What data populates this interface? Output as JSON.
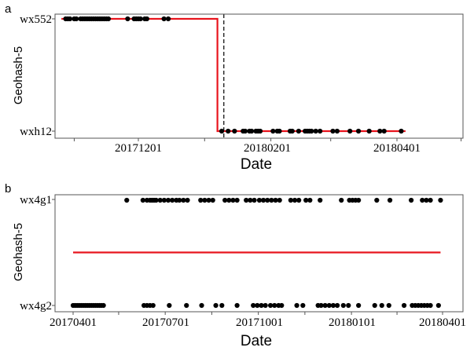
{
  "chart_data": [
    {
      "panel": "a",
      "type": "scatter",
      "xlabel": "Date",
      "ylabel": "Geohash-5",
      "y_categories": [
        "wxh12",
        "wx552"
      ],
      "x_tick_labels": [
        "20171201",
        "20180201",
        "20180401"
      ],
      "x_ticks": [
        "2017-12-01",
        "2018-02-01",
        "2018-04-01"
      ],
      "xlim": [
        "2017-10-26",
        "2018-05-01"
      ],
      "grid": false,
      "legend": "none",
      "series": [
        {
          "type": "scatter",
          "color": "#000000",
          "points": [
            {
              "x": "2017-10-28",
              "y": "wx552"
            },
            {
              "x": "2017-10-29",
              "y": "wx552"
            },
            {
              "x": "2017-10-30",
              "y": "wx552"
            },
            {
              "x": "2017-11-01",
              "y": "wx552"
            },
            {
              "x": "2017-11-02",
              "y": "wx552"
            },
            {
              "x": "2017-11-04",
              "y": "wx552"
            },
            {
              "x": "2017-11-05",
              "y": "wx552"
            },
            {
              "x": "2017-11-06",
              "y": "wx552"
            },
            {
              "x": "2017-11-07",
              "y": "wx552"
            },
            {
              "x": "2017-11-08",
              "y": "wx552"
            },
            {
              "x": "2017-11-09",
              "y": "wx552"
            },
            {
              "x": "2017-11-10",
              "y": "wx552"
            },
            {
              "x": "2017-11-11",
              "y": "wx552"
            },
            {
              "x": "2017-11-12",
              "y": "wx552"
            },
            {
              "x": "2017-11-13",
              "y": "wx552"
            },
            {
              "x": "2017-11-14",
              "y": "wx552"
            },
            {
              "x": "2017-11-15",
              "y": "wx552"
            },
            {
              "x": "2017-11-16",
              "y": "wx552"
            },
            {
              "x": "2017-11-17",
              "y": "wx552"
            },
            {
              "x": "2017-11-26",
              "y": "wx552"
            },
            {
              "x": "2017-11-29",
              "y": "wx552"
            },
            {
              "x": "2017-11-30",
              "y": "wx552"
            },
            {
              "x": "2017-12-01",
              "y": "wx552"
            },
            {
              "x": "2017-12-02",
              "y": "wx552"
            },
            {
              "x": "2017-12-04",
              "y": "wx552"
            },
            {
              "x": "2017-12-05",
              "y": "wx552"
            },
            {
              "x": "2017-12-13",
              "y": "wx552"
            },
            {
              "x": "2017-12-15",
              "y": "wx552"
            },
            {
              "x": "2018-01-09",
              "y": "wxh12"
            },
            {
              "x": "2018-01-12",
              "y": "wxh12"
            },
            {
              "x": "2018-01-15",
              "y": "wxh12"
            },
            {
              "x": "2018-01-19",
              "y": "wxh12"
            },
            {
              "x": "2018-01-20",
              "y": "wxh12"
            },
            {
              "x": "2018-01-22",
              "y": "wxh12"
            },
            {
              "x": "2018-01-23",
              "y": "wxh12"
            },
            {
              "x": "2018-01-25",
              "y": "wxh12"
            },
            {
              "x": "2018-01-26",
              "y": "wxh12"
            },
            {
              "x": "2018-01-27",
              "y": "wxh12"
            },
            {
              "x": "2018-02-02",
              "y": "wxh12"
            },
            {
              "x": "2018-02-04",
              "y": "wxh12"
            },
            {
              "x": "2018-02-05",
              "y": "wxh12"
            },
            {
              "x": "2018-02-10",
              "y": "wxh12"
            },
            {
              "x": "2018-02-11",
              "y": "wxh12"
            },
            {
              "x": "2018-02-14",
              "y": "wxh12"
            },
            {
              "x": "2018-02-17",
              "y": "wxh12"
            },
            {
              "x": "2018-02-18",
              "y": "wxh12"
            },
            {
              "x": "2018-02-19",
              "y": "wxh12"
            },
            {
              "x": "2018-02-20",
              "y": "wxh12"
            },
            {
              "x": "2018-02-22",
              "y": "wxh12"
            },
            {
              "x": "2018-02-24",
              "y": "wxh12"
            },
            {
              "x": "2018-03-02",
              "y": "wxh12"
            },
            {
              "x": "2018-03-04",
              "y": "wxh12"
            },
            {
              "x": "2018-03-10",
              "y": "wxh12"
            },
            {
              "x": "2018-03-14",
              "y": "wxh12"
            },
            {
              "x": "2018-03-19",
              "y": "wxh12"
            },
            {
              "x": "2018-03-24",
              "y": "wxh12"
            },
            {
              "x": "2018-03-26",
              "y": "wxh12"
            },
            {
              "x": "2018-04-03",
              "y": "wxh12"
            }
          ]
        },
        {
          "type": "step",
          "color": "#e8141d",
          "points": [
            {
              "x": "2017-10-26",
              "y": "wx552"
            },
            {
              "x": "2018-01-07",
              "y": "wx552"
            },
            {
              "x": "2018-01-07",
              "y": "wxh12"
            },
            {
              "x": "2018-04-05",
              "y": "wxh12"
            }
          ]
        },
        {
          "type": "vline",
          "style": "dashed",
          "color": "#000000",
          "x": "2018-01-10"
        }
      ]
    },
    {
      "panel": "b",
      "type": "scatter",
      "xlabel": "Date",
      "ylabel": "Geohash-5",
      "y_categories": [
        "wx4g2",
        "wx4g1"
      ],
      "x_tick_labels": [
        "20170401",
        "20170701",
        "20171001",
        "20180101",
        "20180401"
      ],
      "x_ticks": [
        "2017-04-01",
        "2017-07-01",
        "2017-10-01",
        "2018-01-01",
        "2018-04-01"
      ],
      "xlim": [
        "2017-03-15",
        "2018-04-20"
      ],
      "grid": false,
      "legend": "none",
      "series": [
        {
          "type": "scatter",
          "color": "#000000",
          "points": [
            {
              "x": "2017-04-01",
              "y": "wx4g2"
            },
            {
              "x": "2017-04-03",
              "y": "wx4g2"
            },
            {
              "x": "2017-04-05",
              "y": "wx4g2"
            },
            {
              "x": "2017-04-07",
              "y": "wx4g2"
            },
            {
              "x": "2017-04-09",
              "y": "wx4g2"
            },
            {
              "x": "2017-04-11",
              "y": "wx4g2"
            },
            {
              "x": "2017-04-13",
              "y": "wx4g2"
            },
            {
              "x": "2017-04-15",
              "y": "wx4g2"
            },
            {
              "x": "2017-04-17",
              "y": "wx4g2"
            },
            {
              "x": "2017-04-19",
              "y": "wx4g2"
            },
            {
              "x": "2017-04-21",
              "y": "wx4g2"
            },
            {
              "x": "2017-04-23",
              "y": "wx4g2"
            },
            {
              "x": "2017-04-25",
              "y": "wx4g2"
            },
            {
              "x": "2017-04-27",
              "y": "wx4g2"
            },
            {
              "x": "2017-04-29",
              "y": "wx4g2"
            },
            {
              "x": "2017-05-01",
              "y": "wx4g2"
            },
            {
              "x": "2017-06-10",
              "y": "wx4g2"
            },
            {
              "x": "2017-06-13",
              "y": "wx4g2"
            },
            {
              "x": "2017-06-16",
              "y": "wx4g2"
            },
            {
              "x": "2017-06-19",
              "y": "wx4g2"
            },
            {
              "x": "2017-07-05",
              "y": "wx4g2"
            },
            {
              "x": "2017-07-22",
              "y": "wx4g2"
            },
            {
              "x": "2017-08-06",
              "y": "wx4g2"
            },
            {
              "x": "2017-08-20",
              "y": "wx4g2"
            },
            {
              "x": "2017-08-26",
              "y": "wx4g2"
            },
            {
              "x": "2017-09-10",
              "y": "wx4g2"
            },
            {
              "x": "2017-09-26",
              "y": "wx4g2"
            },
            {
              "x": "2017-09-30",
              "y": "wx4g2"
            },
            {
              "x": "2017-10-04",
              "y": "wx4g2"
            },
            {
              "x": "2017-10-08",
              "y": "wx4g2"
            },
            {
              "x": "2017-10-13",
              "y": "wx4g2"
            },
            {
              "x": "2017-10-17",
              "y": "wx4g2"
            },
            {
              "x": "2017-10-21",
              "y": "wx4g2"
            },
            {
              "x": "2017-10-24",
              "y": "wx4g2"
            },
            {
              "x": "2017-11-08",
              "y": "wx4g2"
            },
            {
              "x": "2017-11-14",
              "y": "wx4g2"
            },
            {
              "x": "2017-11-29",
              "y": "wx4g2"
            },
            {
              "x": "2017-12-02",
              "y": "wx4g2"
            },
            {
              "x": "2017-12-06",
              "y": "wx4g2"
            },
            {
              "x": "2017-12-10",
              "y": "wx4g2"
            },
            {
              "x": "2017-12-14",
              "y": "wx4g2"
            },
            {
              "x": "2017-12-18",
              "y": "wx4g2"
            },
            {
              "x": "2017-12-24",
              "y": "wx4g2"
            },
            {
              "x": "2017-12-29",
              "y": "wx4g2"
            },
            {
              "x": "2018-01-08",
              "y": "wx4g2"
            },
            {
              "x": "2018-01-24",
              "y": "wx4g2"
            },
            {
              "x": "2018-01-31",
              "y": "wx4g2"
            },
            {
              "x": "2018-02-07",
              "y": "wx4g2"
            },
            {
              "x": "2018-02-22",
              "y": "wx4g2"
            },
            {
              "x": "2018-03-02",
              "y": "wx4g2"
            },
            {
              "x": "2018-03-05",
              "y": "wx4g2"
            },
            {
              "x": "2018-03-08",
              "y": "wx4g2"
            },
            {
              "x": "2018-03-11",
              "y": "wx4g2"
            },
            {
              "x": "2018-03-14",
              "y": "wx4g2"
            },
            {
              "x": "2018-03-17",
              "y": "wx4g2"
            },
            {
              "x": "2018-03-20",
              "y": "wx4g2"
            },
            {
              "x": "2018-03-28",
              "y": "wx4g2"
            },
            {
              "x": "2017-05-24",
              "y": "wx4g1"
            },
            {
              "x": "2017-06-09",
              "y": "wx4g1"
            },
            {
              "x": "2017-06-13",
              "y": "wx4g1"
            },
            {
              "x": "2017-06-16",
              "y": "wx4g1"
            },
            {
              "x": "2017-06-18",
              "y": "wx4g1"
            },
            {
              "x": "2017-06-20",
              "y": "wx4g1"
            },
            {
              "x": "2017-06-22",
              "y": "wx4g1"
            },
            {
              "x": "2017-06-26",
              "y": "wx4g1"
            },
            {
              "x": "2017-06-30",
              "y": "wx4g1"
            },
            {
              "x": "2017-07-04",
              "y": "wx4g1"
            },
            {
              "x": "2017-07-08",
              "y": "wx4g1"
            },
            {
              "x": "2017-07-12",
              "y": "wx4g1"
            },
            {
              "x": "2017-07-15",
              "y": "wx4g1"
            },
            {
              "x": "2017-07-19",
              "y": "wx4g1"
            },
            {
              "x": "2017-07-23",
              "y": "wx4g1"
            },
            {
              "x": "2017-08-05",
              "y": "wx4g1"
            },
            {
              "x": "2017-08-09",
              "y": "wx4g1"
            },
            {
              "x": "2017-08-13",
              "y": "wx4g1"
            },
            {
              "x": "2017-08-17",
              "y": "wx4g1"
            },
            {
              "x": "2017-08-29",
              "y": "wx4g1"
            },
            {
              "x": "2017-09-02",
              "y": "wx4g1"
            },
            {
              "x": "2017-09-06",
              "y": "wx4g1"
            },
            {
              "x": "2017-09-10",
              "y": "wx4g1"
            },
            {
              "x": "2017-09-19",
              "y": "wx4g1"
            },
            {
              "x": "2017-09-23",
              "y": "wx4g1"
            },
            {
              "x": "2017-09-27",
              "y": "wx4g1"
            },
            {
              "x": "2017-10-02",
              "y": "wx4g1"
            },
            {
              "x": "2017-10-06",
              "y": "wx4g1"
            },
            {
              "x": "2017-10-10",
              "y": "wx4g1"
            },
            {
              "x": "2017-10-14",
              "y": "wx4g1"
            },
            {
              "x": "2017-10-18",
              "y": "wx4g1"
            },
            {
              "x": "2017-10-22",
              "y": "wx4g1"
            },
            {
              "x": "2017-11-02",
              "y": "wx4g1"
            },
            {
              "x": "2017-11-06",
              "y": "wx4g1"
            },
            {
              "x": "2017-11-10",
              "y": "wx4g1"
            },
            {
              "x": "2017-11-17",
              "y": "wx4g1"
            },
            {
              "x": "2017-11-21",
              "y": "wx4g1"
            },
            {
              "x": "2017-12-01",
              "y": "wx4g1"
            },
            {
              "x": "2017-12-22",
              "y": "wx4g1"
            },
            {
              "x": "2017-12-30",
              "y": "wx4g1"
            },
            {
              "x": "2018-01-02",
              "y": "wx4g1"
            },
            {
              "x": "2018-01-05",
              "y": "wx4g1"
            },
            {
              "x": "2018-01-08",
              "y": "wx4g1"
            },
            {
              "x": "2018-01-26",
              "y": "wx4g1"
            },
            {
              "x": "2018-02-08",
              "y": "wx4g1"
            },
            {
              "x": "2018-03-01",
              "y": "wx4g1"
            },
            {
              "x": "2018-03-12",
              "y": "wx4g1"
            },
            {
              "x": "2018-03-16",
              "y": "wx4g1"
            },
            {
              "x": "2018-03-20",
              "y": "wx4g1"
            },
            {
              "x": "2018-03-30",
              "y": "wx4g1"
            }
          ]
        },
        {
          "type": "line",
          "color": "#e8141d",
          "points": [
            {
              "x": "2017-04-01",
              "y": "wx4g2",
              "offset": 0.5
            },
            {
              "x": "2018-03-30",
              "y": "wx4g2",
              "offset": 0.5
            }
          ]
        }
      ]
    }
  ]
}
